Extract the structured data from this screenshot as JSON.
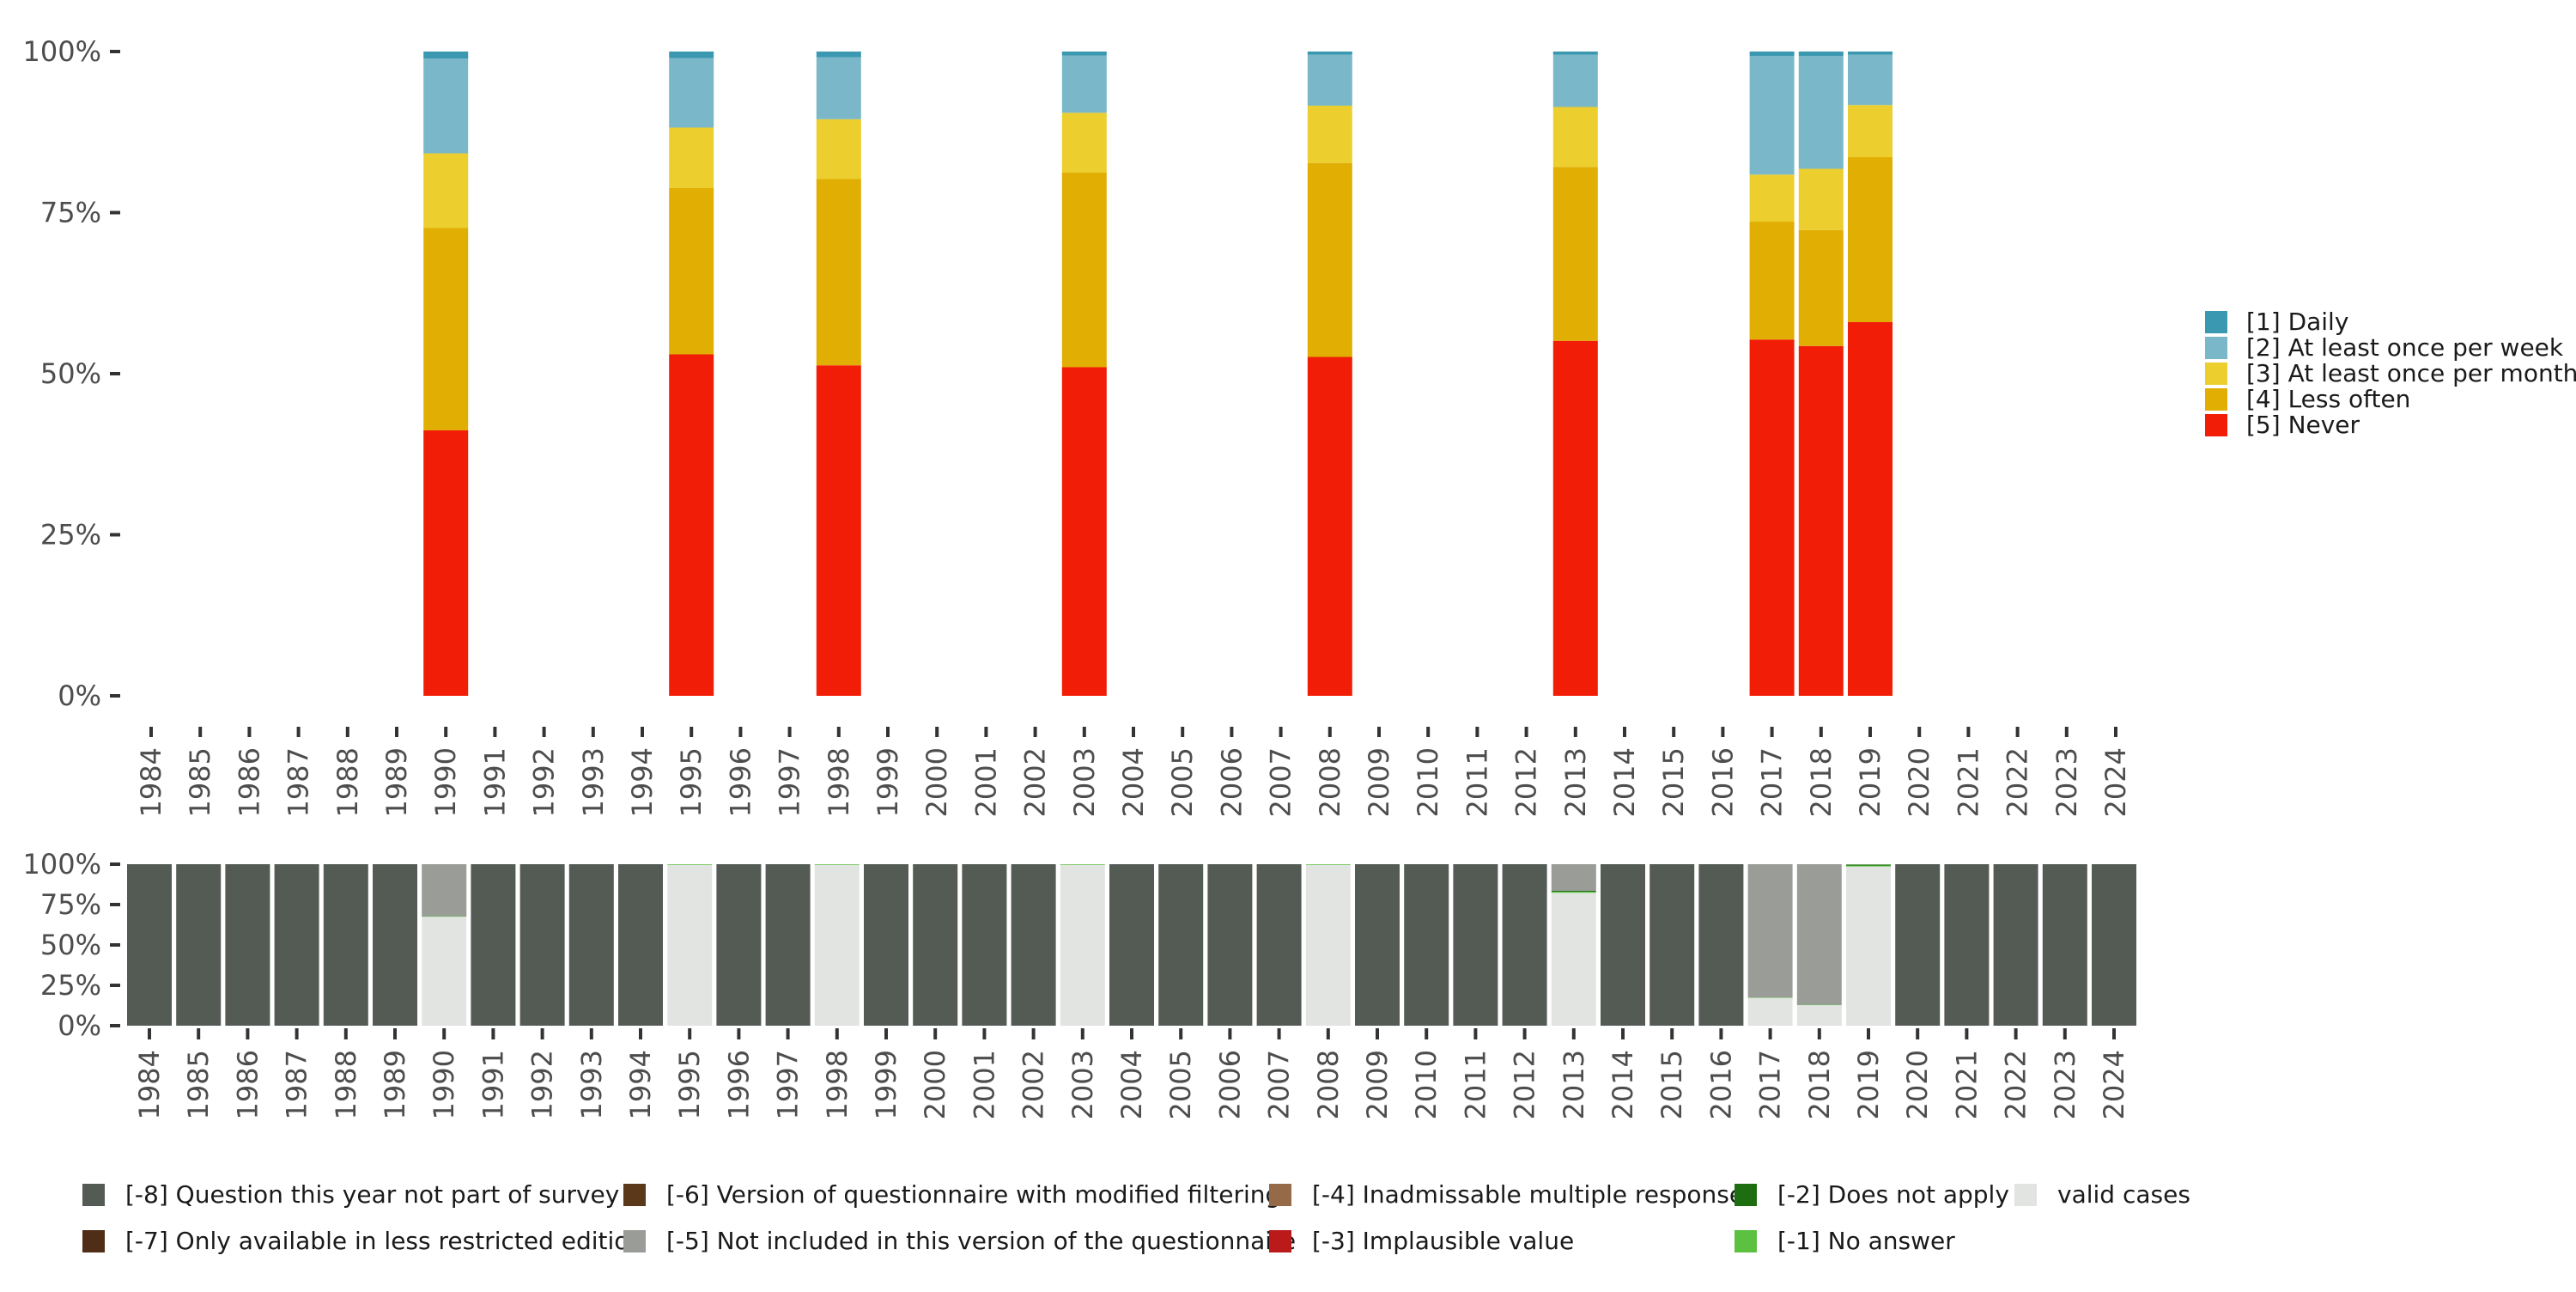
{
  "chart_data": [
    {
      "type": "bar",
      "stacked": true,
      "categories": [
        "1984",
        "1985",
        "1986",
        "1987",
        "1988",
        "1989",
        "1990",
        "1991",
        "1992",
        "1993",
        "1994",
        "1995",
        "1996",
        "1997",
        "1998",
        "1999",
        "2000",
        "2001",
        "2002",
        "2003",
        "2004",
        "2005",
        "2006",
        "2007",
        "2008",
        "2009",
        "2010",
        "2011",
        "2012",
        "2013",
        "2014",
        "2015",
        "2016",
        "2017",
        "2018",
        "2019",
        "2020",
        "2021",
        "2022",
        "2023",
        "2024"
      ],
      "ylim": [
        0,
        100
      ],
      "yticks": [
        {
          "value": 0,
          "label": "0%"
        },
        {
          "value": 25,
          "label": "25%"
        },
        {
          "value": 50,
          "label": "50%"
        },
        {
          "value": 75,
          "label": "75%"
        },
        {
          "value": 100,
          "label": "100%"
        }
      ],
      "legend_position": "right",
      "grid": false,
      "series": [
        {
          "name": "[5] Never",
          "color": "#f21d06",
          "values": {
            "1990": 41.2,
            "1995": 53.0,
            "1998": 51.3,
            "2003": 51.0,
            "2008": 52.6,
            "2013": 55.1,
            "2017": 55.3,
            "2018": 54.3,
            "2019": 58.0
          }
        },
        {
          "name": "[4] Less often",
          "color": "#e1ae03",
          "values": {
            "1990": 31.4,
            "1995": 25.8,
            "1998": 28.9,
            "2003": 30.2,
            "2008": 30.1,
            "2013": 27.0,
            "2017": 18.3,
            "2018": 18.0,
            "2019": 25.6
          }
        },
        {
          "name": "[3] At least once per month",
          "color": "#ecce2e",
          "values": {
            "1990": 11.6,
            "1995": 9.4,
            "1998": 9.3,
            "2003": 9.3,
            "2008": 8.9,
            "2013": 9.3,
            "2017": 7.3,
            "2018": 9.5,
            "2019": 8.1
          }
        },
        {
          "name": "[2] At least once per week",
          "color": "#7ab8c9",
          "values": {
            "1990": 14.7,
            "1995": 10.8,
            "1998": 9.6,
            "2003": 8.9,
            "2008": 7.9,
            "2013": 8.1,
            "2017": 18.4,
            "2018": 17.5,
            "2019": 7.8
          }
        },
        {
          "name": "[1] Daily",
          "color": "#3a98b0",
          "values": {
            "1990": 1.1,
            "1995": 1.0,
            "1998": 0.9,
            "2003": 0.6,
            "2008": 0.5,
            "2013": 0.5,
            "2017": 0.7,
            "2018": 0.7,
            "2019": 0.5
          }
        }
      ]
    },
    {
      "type": "bar",
      "stacked": true,
      "categories": [
        "1984",
        "1985",
        "1986",
        "1987",
        "1988",
        "1989",
        "1990",
        "1991",
        "1992",
        "1993",
        "1994",
        "1995",
        "1996",
        "1997",
        "1998",
        "1999",
        "2000",
        "2001",
        "2002",
        "2003",
        "2004",
        "2005",
        "2006",
        "2007",
        "2008",
        "2009",
        "2010",
        "2011",
        "2012",
        "2013",
        "2014",
        "2015",
        "2016",
        "2017",
        "2018",
        "2019",
        "2020",
        "2021",
        "2022",
        "2023",
        "2024"
      ],
      "ylim": [
        0,
        100
      ],
      "yticks": [
        {
          "value": 0,
          "label": "0%"
        },
        {
          "value": 25,
          "label": "25%"
        },
        {
          "value": 50,
          "label": "50%"
        },
        {
          "value": 75,
          "label": "75%"
        },
        {
          "value": 100,
          "label": "100%"
        }
      ],
      "legend_position": "bottom",
      "grid": false,
      "series": [
        {
          "name": "valid cases",
          "color": "#e1e4e0",
          "values": {
            "1990": 67.5,
            "1995": 99.6,
            "1998": 99.6,
            "2003": 99.6,
            "2008": 99.6,
            "2013": 82.3,
            "2017": 17.3,
            "2018": 12.8,
            "2019": 98.6
          }
        },
        {
          "name": "[-1] No answer",
          "color": "#5cc040",
          "values": {
            "1990": 0.3,
            "1995": 0.4,
            "1998": 0.4,
            "2003": 0.4,
            "2008": 0.4,
            "2013": 0.7,
            "2017": 0.2,
            "2018": 0.2,
            "2019": 0.6
          }
        },
        {
          "name": "[-2] Does not apply",
          "color": "#1d6e10",
          "values": {
            "2013": 0.5,
            "2019": 0.6
          }
        },
        {
          "name": "[-3] Implausible value",
          "color": "#ba1a1a",
          "values": {}
        },
        {
          "name": "[-4] Inadmissable multiple response",
          "color": "#946a48",
          "values": {}
        },
        {
          "name": "[-5] Not included in this version of the questionnaire",
          "color": "#9a9c98",
          "values": {
            "1990": 32.2,
            "2013": 16.5,
            "2017": 82.5,
            "2018": 87.0
          }
        },
        {
          "name": "[-6] Version of questionnaire with modified filtering",
          "color": "#5a3819",
          "values": {}
        },
        {
          "name": "[-7] Only available in less restricted edition",
          "color": "#4f2d17",
          "values": {}
        },
        {
          "name": "[-8] Question this year not part of survey",
          "color": "#545b55",
          "values": {
            "1984": 100,
            "1985": 100,
            "1986": 100,
            "1987": 100,
            "1988": 100,
            "1989": 100,
            "1991": 100,
            "1992": 100,
            "1993": 100,
            "1994": 100,
            "1996": 100,
            "1997": 100,
            "1999": 100,
            "2000": 100,
            "2001": 100,
            "2002": 100,
            "2004": 100,
            "2005": 100,
            "2006": 100,
            "2007": 100,
            "2009": 100,
            "2010": 100,
            "2011": 100,
            "2012": 100,
            "2014": 100,
            "2015": 100,
            "2016": 100,
            "2020": 100,
            "2021": 100,
            "2022": 100,
            "2023": 100,
            "2024": 100
          }
        }
      ]
    }
  ],
  "top_legend": {
    "items": [
      {
        "label": "[1] Daily",
        "color": "#3a98b0"
      },
      {
        "label": "[2] At least once per week",
        "color": "#7ab8c9"
      },
      {
        "label": "[3] At least once per month",
        "color": "#ecce2e"
      },
      {
        "label": "[4] Less often",
        "color": "#e1ae03"
      },
      {
        "label": "[5] Never",
        "color": "#f21d06"
      }
    ]
  },
  "bottom_legend": {
    "items": [
      {
        "label": "[-8] Question this year not part of survey",
        "color": "#545b55"
      },
      {
        "label": "[-7] Only available in less restricted edition",
        "color": "#4f2d17"
      },
      {
        "label": "[-6] Version of questionnaire with modified filtering",
        "color": "#5a3819"
      },
      {
        "label": "[-5] Not included in this version of the questionnaire",
        "color": "#9a9c98"
      },
      {
        "label": "[-4] Inadmissable multiple response",
        "color": "#946a48"
      },
      {
        "label": "[-3] Implausible value",
        "color": "#ba1a1a"
      },
      {
        "label": "[-2] Does not apply",
        "color": "#1d6e10"
      },
      {
        "label": "[-1] No answer",
        "color": "#5cc040"
      },
      {
        "label": "valid cases",
        "color": "#e1e4e0"
      }
    ]
  }
}
